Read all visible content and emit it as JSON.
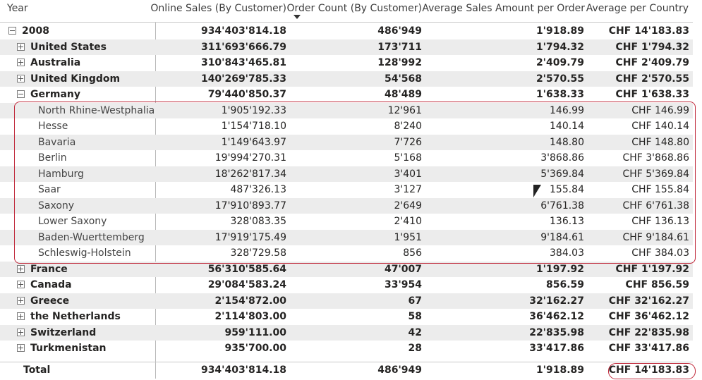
{
  "headers": {
    "year": "Year",
    "online_sales": "Online Sales (By Customer)",
    "order_count": "Order Count (By Customer)",
    "avg_sales": "Average Sales Amount per Order",
    "avg_country": "Average per Country"
  },
  "rows": [
    {
      "label": "2008",
      "level": 0,
      "expander": "minus",
      "bold": true,
      "v1": "934'403'814.18",
      "v2": "486'949",
      "v3": "1'918.89",
      "v4": "CHF 14'183.83"
    },
    {
      "label": "United States",
      "level": 1,
      "expander": "plus",
      "bold": true,
      "v1": "311'693'666.79",
      "v2": "173'711",
      "v3": "1'794.32",
      "v4": "CHF 1'794.32"
    },
    {
      "label": "Australia",
      "level": 1,
      "expander": "plus",
      "bold": true,
      "v1": "310'843'465.81",
      "v2": "128'992",
      "v3": "2'409.79",
      "v4": "CHF 2'409.79"
    },
    {
      "label": "United Kingdom",
      "level": 1,
      "expander": "plus",
      "bold": true,
      "v1": "140'269'785.33",
      "v2": "54'568",
      "v3": "2'570.55",
      "v4": "CHF 2'570.55"
    },
    {
      "label": "Germany",
      "level": 1,
      "expander": "minus",
      "bold": true,
      "v1": "79'440'850.37",
      "v2": "48'489",
      "v3": "1'638.33",
      "v4": "CHF 1'638.33"
    },
    {
      "label": "North Rhine-Westphalia",
      "level": 2,
      "expander": "",
      "bold": false,
      "v1": "1'905'192.33",
      "v2": "12'961",
      "v3": "146.99",
      "v4": "CHF 146.99"
    },
    {
      "label": "Hesse",
      "level": 2,
      "expander": "",
      "bold": false,
      "v1": "1'154'718.10",
      "v2": "8'240",
      "v3": "140.14",
      "v4": "CHF 140.14"
    },
    {
      "label": "Bavaria",
      "level": 2,
      "expander": "",
      "bold": false,
      "v1": "1'149'643.97",
      "v2": "7'726",
      "v3": "148.80",
      "v4": "CHF 148.80"
    },
    {
      "label": "Berlin",
      "level": 2,
      "expander": "",
      "bold": false,
      "v1": "19'994'270.31",
      "v2": "5'168",
      "v3": "3'868.86",
      "v4": "CHF 3'868.86"
    },
    {
      "label": "Hamburg",
      "level": 2,
      "expander": "",
      "bold": false,
      "v1": "18'262'817.34",
      "v2": "3'401",
      "v3": "5'369.84",
      "v4": "CHF 5'369.84"
    },
    {
      "label": "Saar",
      "level": 2,
      "expander": "",
      "bold": false,
      "v1": "487'326.13",
      "v2": "3'127",
      "v3": "155.84",
      "v4": "CHF 155.84"
    },
    {
      "label": "Saxony",
      "level": 2,
      "expander": "",
      "bold": false,
      "v1": "17'910'893.77",
      "v2": "2'649",
      "v3": "6'761.38",
      "v4": "CHF 6'761.38"
    },
    {
      "label": "Lower Saxony",
      "level": 2,
      "expander": "",
      "bold": false,
      "v1": "328'083.35",
      "v2": "2'410",
      "v3": "136.13",
      "v4": "CHF 136.13"
    },
    {
      "label": "Baden-Wuerttemberg",
      "level": 2,
      "expander": "",
      "bold": false,
      "v1": "17'919'175.49",
      "v2": "1'951",
      "v3": "9'184.61",
      "v4": "CHF 9'184.61"
    },
    {
      "label": "Schleswig-Holstein",
      "level": 2,
      "expander": "",
      "bold": false,
      "v1": "328'729.58",
      "v2": "856",
      "v3": "384.03",
      "v4": "CHF 384.03"
    },
    {
      "label": "France",
      "level": 1,
      "expander": "plus",
      "bold": true,
      "v1": "56'310'585.64",
      "v2": "47'007",
      "v3": "1'197.92",
      "v4": "CHF 1'197.92"
    },
    {
      "label": "Canada",
      "level": 1,
      "expander": "plus",
      "bold": true,
      "v1": "29'084'583.24",
      "v2": "33'954",
      "v3": "856.59",
      "v4": "CHF 856.59"
    },
    {
      "label": "Greece",
      "level": 1,
      "expander": "plus",
      "bold": true,
      "v1": "2'154'872.00",
      "v2": "67",
      "v3": "32'162.27",
      "v4": "CHF 32'162.27"
    },
    {
      "label": "the Netherlands",
      "level": 1,
      "expander": "plus",
      "bold": true,
      "v1": "2'114'803.00",
      "v2": "58",
      "v3": "36'462.12",
      "v4": "CHF 36'462.12"
    },
    {
      "label": "Switzerland",
      "level": 1,
      "expander": "plus",
      "bold": true,
      "v1": "959'111.00",
      "v2": "42",
      "v3": "22'835.98",
      "v4": "CHF 22'835.98"
    },
    {
      "label": "Turkmenistan",
      "level": 1,
      "expander": "plus",
      "bold": true,
      "v1": "935'700.00",
      "v2": "28",
      "v3": "33'417.86",
      "v4": "CHF 33'417.86"
    }
  ],
  "total": {
    "label": "Total",
    "v1": "934'403'814.18",
    "v2": "486'949",
    "v3": "1'918.89",
    "v4": "CHF 14'183.83"
  },
  "colors": {
    "highlight": "#c0283a",
    "shade": "#ececec"
  }
}
